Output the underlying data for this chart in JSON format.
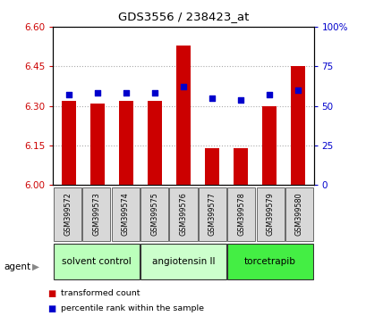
{
  "title": "GDS3556 / 238423_at",
  "samples": [
    "GSM399572",
    "GSM399573",
    "GSM399574",
    "GSM399575",
    "GSM399576",
    "GSM399577",
    "GSM399578",
    "GSM399579",
    "GSM399580"
  ],
  "transformed_counts": [
    6.32,
    6.31,
    6.32,
    6.32,
    6.53,
    6.14,
    6.14,
    6.3,
    6.45
  ],
  "percentile_ranks": [
    57,
    58,
    58,
    58,
    62,
    55,
    54,
    57,
    60
  ],
  "ylim_left": [
    6.0,
    6.6
  ],
  "ylim_right": [
    0,
    100
  ],
  "yticks_left": [
    6.0,
    6.15,
    6.3,
    6.45,
    6.6
  ],
  "yticks_right": [
    0,
    25,
    50,
    75,
    100
  ],
  "bar_color": "#cc0000",
  "dot_color": "#0000cc",
  "groups": [
    {
      "label": "solvent control",
      "start": 0,
      "end": 3,
      "color": "#bbffbb"
    },
    {
      "label": "angiotensin II",
      "start": 3,
      "end": 6,
      "color": "#ccffcc"
    },
    {
      "label": "torcetrapib",
      "start": 6,
      "end": 9,
      "color": "#44ee44"
    }
  ],
  "agent_label": "agent",
  "legend_items": [
    {
      "label": "transformed count",
      "color": "#cc0000"
    },
    {
      "label": "percentile rank within the sample",
      "color": "#0000cc"
    }
  ],
  "grid_color": "#aaaaaa",
  "plot_bg": "#ffffff",
  "left_tick_color": "#cc0000",
  "right_tick_color": "#0000cc",
  "sample_box_color": "#d8d8d8",
  "bar_width": 0.5
}
